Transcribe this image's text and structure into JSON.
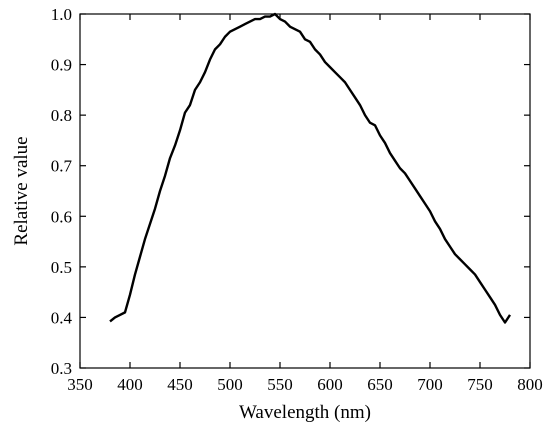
{
  "chart_data": {
    "type": "line",
    "title": "",
    "xlabel": "Wavelength (nm)",
    "ylabel": "Relative value",
    "xlim": [
      350,
      800
    ],
    "ylim": [
      0.3,
      1.0
    ],
    "xticks": [
      350,
      400,
      450,
      500,
      550,
      600,
      650,
      700,
      750,
      800
    ],
    "yticks": [
      0.3,
      0.4,
      0.5,
      0.6,
      0.7,
      0.8,
      0.9,
      1.0
    ],
    "ytick_labels": [
      "0.3",
      "0.4",
      "0.5",
      "0.6",
      "0.7",
      "0.8",
      "0.9",
      "1.0"
    ],
    "grid": false,
    "series": [
      {
        "x": [
          380,
          385,
          390,
          395,
          400,
          405,
          410,
          415,
          420,
          425,
          430,
          435,
          440,
          445,
          450,
          455,
          460,
          465,
          470,
          475,
          480,
          485,
          490,
          495,
          500,
          505,
          510,
          515,
          520,
          525,
          530,
          535,
          540,
          545,
          550,
          555,
          560,
          565,
          570,
          575,
          580,
          585,
          590,
          595,
          600,
          605,
          610,
          615,
          620,
          625,
          630,
          635,
          640,
          645,
          650,
          655,
          660,
          665,
          670,
          675,
          680,
          685,
          690,
          695,
          700,
          705,
          710,
          715,
          720,
          725,
          730,
          735,
          740,
          745,
          750,
          755,
          760,
          765,
          770,
          775,
          780
        ],
        "values": [
          0.392,
          0.4,
          0.405,
          0.41,
          0.445,
          0.485,
          0.52,
          0.555,
          0.585,
          0.615,
          0.65,
          0.68,
          0.715,
          0.74,
          0.77,
          0.805,
          0.82,
          0.85,
          0.865,
          0.885,
          0.91,
          0.93,
          0.94,
          0.955,
          0.965,
          0.97,
          0.975,
          0.98,
          0.985,
          0.99,
          0.99,
          0.995,
          0.995,
          1.0,
          0.99,
          0.985,
          0.975,
          0.97,
          0.965,
          0.95,
          0.945,
          0.93,
          0.92,
          0.905,
          0.895,
          0.885,
          0.875,
          0.865,
          0.85,
          0.835,
          0.82,
          0.8,
          0.785,
          0.78,
          0.76,
          0.745,
          0.725,
          0.71,
          0.695,
          0.685,
          0.67,
          0.655,
          0.64,
          0.625,
          0.61,
          0.59,
          0.575,
          0.555,
          0.54,
          0.525,
          0.515,
          0.505,
          0.495,
          0.485,
          0.47,
          0.455,
          0.44,
          0.425,
          0.405,
          0.39,
          0.405
        ]
      }
    ]
  }
}
